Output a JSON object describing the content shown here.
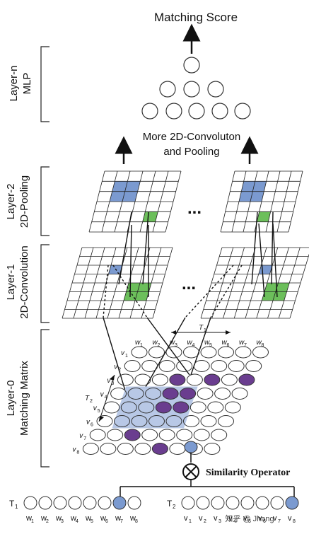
{
  "title": "Matching Score",
  "more_conv_label_1": "More 2D-Convoluton",
  "more_conv_label_2": "and Pooling",
  "ellipsis": "...",
  "layers": [
    {
      "line1": "Layer-n",
      "line2": "MLP"
    },
    {
      "line1": "Layer-2",
      "line2": "2D-Pooling"
    },
    {
      "line1": "Layer-1",
      "line2": "2D-Convolution"
    },
    {
      "line1": "Layer-0",
      "line2": "Matching Matrix"
    }
  ],
  "similarity_label": "Similarity Operator",
  "t1_label": "T",
  "t1_sub": "1",
  "t2_label": "T",
  "t2_sub": "2",
  "w_letter": "w",
  "v_letter": "v",
  "word_indices": [
    "1",
    "2",
    "3",
    "4",
    "5",
    "6",
    "7",
    "8"
  ],
  "matrix_rows": 8,
  "matrix_cols": 8,
  "purple_cells": [
    [
      2,
      5
    ],
    [
      2,
      3
    ],
    [
      2,
      7
    ],
    [
      3,
      3
    ],
    [
      3,
      4
    ],
    [
      4,
      3
    ],
    [
      4,
      4
    ],
    [
      6,
      2
    ],
    [
      7,
      4
    ]
  ],
  "blue_region": {
    "rows": [
      3,
      5
    ],
    "cols": [
      1,
      4
    ]
  },
  "selected_word_t1": 7,
  "selected_word_v": 8,
  "selected_word_t2": 8,
  "watermark": "知乎 @ Jhang",
  "colors": {
    "blue": "#7b9ad0",
    "green": "#6cbf5b",
    "purple": "#6a3d8f",
    "light_blue": "#b8c8e6",
    "line": "#111111"
  }
}
